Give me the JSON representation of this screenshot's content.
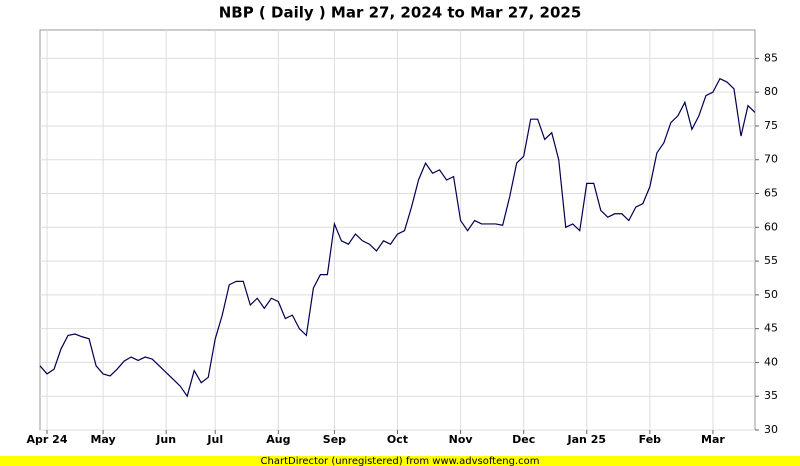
{
  "chart_data": {
    "type": "line",
    "title": "NBP ( Daily ) Mar 27, 2024 to Mar 27, 2025",
    "footer": "ChartDirector (unregistered) from www.advsofteng.com",
    "ylim": [
      30,
      89.2
    ],
    "yticks": [
      30,
      35,
      40,
      45,
      50,
      55,
      60,
      65,
      70,
      75,
      80,
      85
    ],
    "grid": true,
    "color": "#000050",
    "categories": [
      null,
      "Apr 24",
      null,
      null,
      null,
      null,
      null,
      null,
      null,
      "May",
      null,
      null,
      null,
      null,
      null,
      null,
      null,
      null,
      "Jun",
      null,
      null,
      null,
      null,
      null,
      null,
      "Jul",
      null,
      null,
      null,
      null,
      null,
      null,
      null,
      null,
      "Aug",
      null,
      null,
      null,
      null,
      null,
      null,
      null,
      "Sep",
      null,
      null,
      null,
      null,
      null,
      null,
      null,
      null,
      "Oct",
      null,
      null,
      null,
      null,
      null,
      null,
      null,
      null,
      "Nov",
      null,
      null,
      null,
      null,
      null,
      null,
      null,
      null,
      "Dec",
      null,
      null,
      null,
      null,
      null,
      null,
      null,
      null,
      "Jan 25",
      null,
      null,
      null,
      null,
      null,
      null,
      null,
      null,
      "Feb",
      null,
      null,
      null,
      null,
      null,
      null,
      null,
      null,
      "Mar",
      null,
      null,
      null,
      null,
      null,
      null
    ],
    "values": [
      39.5,
      38.3,
      39,
      42,
      44,
      44.2,
      43.8,
      43.5,
      39.5,
      38.3,
      38,
      39,
      40.2,
      40.8,
      40.3,
      40.8,
      40.5,
      39.5,
      38.5,
      37.5,
      36.5,
      35,
      38.8,
      37,
      37.8,
      43.5,
      47,
      51.5,
      52,
      52,
      48.5,
      49.5,
      48,
      49.5,
      49,
      46.5,
      47,
      45,
      44,
      51,
      53,
      53,
      60.5,
      58,
      57.5,
      59,
      58,
      57.5,
      56.5,
      58,
      57.5,
      59,
      59.5,
      63,
      67,
      69.5,
      68,
      68.5,
      67,
      67.5,
      61,
      59.5,
      61,
      60.5,
      60.5,
      60.5,
      60.3,
      64.5,
      69.5,
      70.5,
      76,
      76,
      73,
      74,
      70,
      60,
      60.5,
      59.5,
      66.5,
      66.5,
      62.5,
      61.5,
      62,
      62,
      61,
      63,
      63.5,
      66,
      71,
      72.5,
      75.5,
      76.5,
      78.5,
      74.5,
      76.5,
      79.5,
      80,
      82,
      81.5,
      80.5,
      73.5,
      78,
      77
    ]
  }
}
